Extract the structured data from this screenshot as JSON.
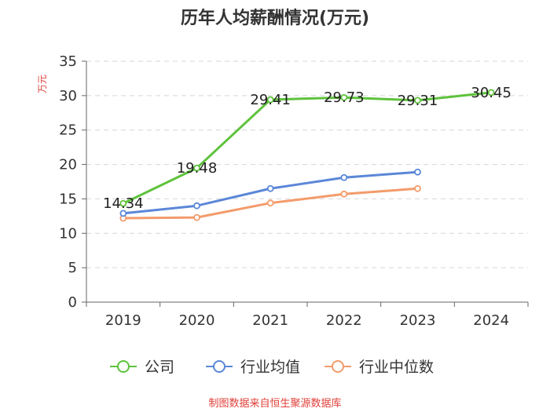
{
  "chart_data": {
    "type": "line",
    "title": "历年人均薪酬情况(万元)",
    "ylabel": "万元",
    "xlabel": "",
    "categories": [
      "2019",
      "2020",
      "2021",
      "2022",
      "2023",
      "2024"
    ],
    "ylim": [
      0,
      35
    ],
    "yticks": [
      0,
      5,
      10,
      15,
      20,
      25,
      30,
      35
    ],
    "grid": true,
    "legend_position": "bottom",
    "series": [
      {
        "name": "公司",
        "color": "#5ec23c",
        "values": [
          14.34,
          19.48,
          29.41,
          29.73,
          29.31,
          30.45
        ],
        "labels": [
          "14.34",
          "19.48",
          "29.41",
          "29.73",
          "29.31",
          "30.45"
        ]
      },
      {
        "name": "行业均值",
        "color": "#5b87d8",
        "values": [
          12.9,
          14.0,
          16.5,
          18.1,
          18.9,
          null
        ]
      },
      {
        "name": "行业中位数",
        "color": "#f39b6b",
        "values": [
          12.2,
          12.3,
          14.4,
          15.7,
          16.5,
          null
        ]
      }
    ],
    "source": "制图数据来自恒生聚源数据库",
    "ylabel_color": "#e0403a",
    "source_color": "#e0403a"
  }
}
